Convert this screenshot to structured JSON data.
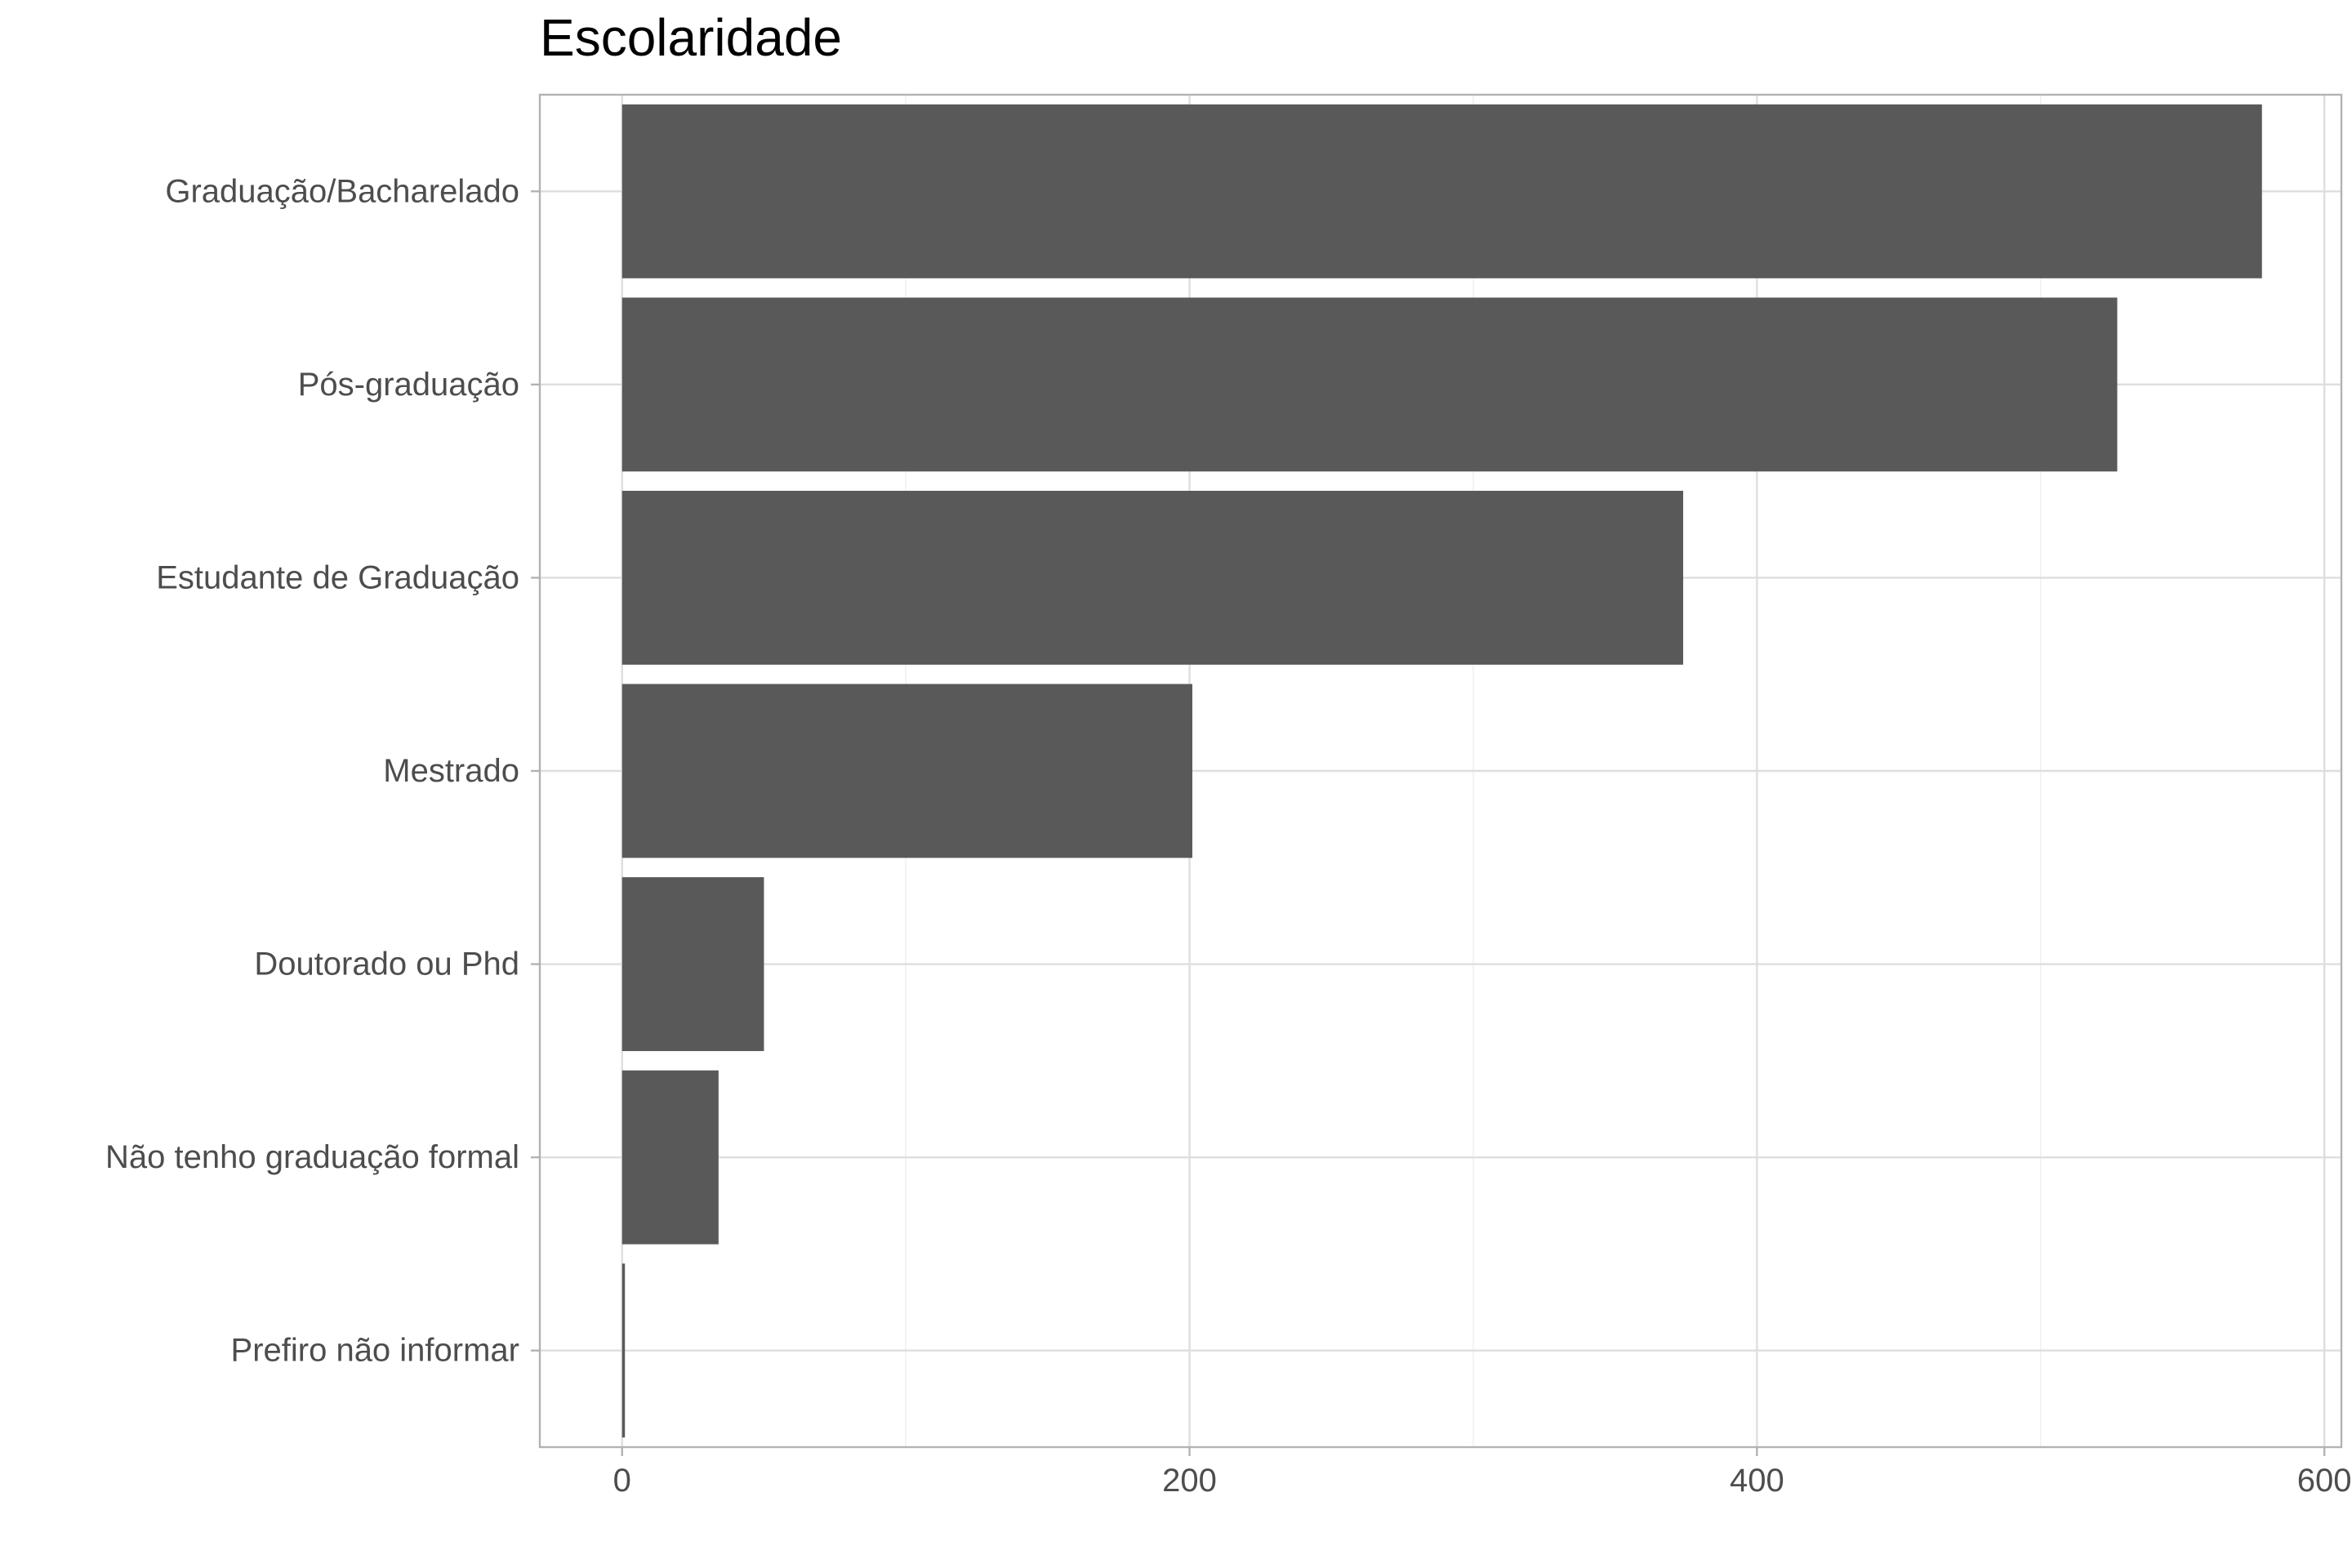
{
  "chart_data": {
    "type": "bar",
    "orientation": "horizontal",
    "title": "Escolaridade",
    "xlabel": "",
    "ylabel": "",
    "categories": [
      "Graduação/Bacharelado",
      "Pós-graduação",
      "Estudante de Graduação",
      "Mestrado",
      "Doutorado ou Phd",
      "Não tenho graduação formal",
      "Prefiro não informar"
    ],
    "values": [
      578,
      527,
      374,
      201,
      50,
      34,
      1
    ],
    "xlim": [
      -29,
      606
    ],
    "xticks": [
      0,
      200,
      400,
      600
    ],
    "grid": true,
    "colors": {
      "bar": "#595959",
      "background": "#ffffff"
    }
  }
}
